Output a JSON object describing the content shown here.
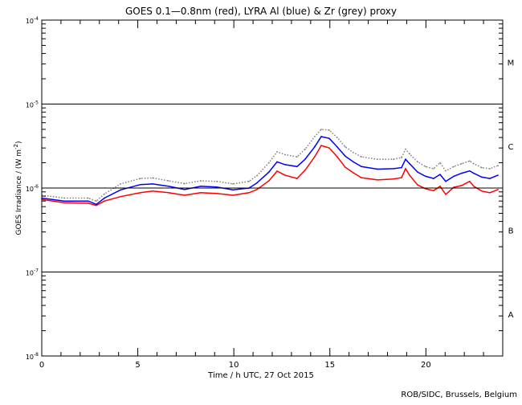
{
  "chart_data": {
    "type": "line",
    "title": "GOES 0.1—0.8nm (red), LYRA Al (blue) & Zr (grey) proxy",
    "xlabel": "Time / h UTC, 27 Oct 2015",
    "ylabel": "GOES Irradiance / (W m",
    "ylabel_sup": "-2",
    "ylabel_end": ")",
    "credit": "ROB/SIDC, Brussels, Belgium",
    "xlim": [
      0,
      24
    ],
    "ylim": [
      1e-08,
      0.0001
    ],
    "yscale": "log",
    "x_ticks": [
      0,
      5,
      10,
      15,
      20
    ],
    "x_tick_labels": [
      "0",
      "5",
      "10",
      "15",
      "20"
    ],
    "y_ticks": [
      1e-08,
      1e-07,
      1e-06,
      1e-05,
      0.0001
    ],
    "y_tick_labels": [
      {
        "base": "10",
        "exp": "-8"
      },
      {
        "base": "10",
        "exp": "-7"
      },
      {
        "base": "10",
        "exp": "-6"
      },
      {
        "base": "10",
        "exp": "-5"
      },
      {
        "base": "10",
        "exp": "-4"
      }
    ],
    "reference_lines": [
      1e-07,
      1e-06,
      1e-05
    ],
    "flare_classes": [
      {
        "label": "A",
        "center": 3.16e-08
      },
      {
        "label": "B",
        "center": 3.16e-07
      },
      {
        "label": "C",
        "center": 3.16e-06
      },
      {
        "label": "M",
        "center": 3.16e-05
      }
    ],
    "x": [
      0,
      1.17,
      2.42,
      2.84,
      3.26,
      4.1,
      5.14,
      5.77,
      6.6,
      7.44,
      8.28,
      9.11,
      9.95,
      10.79,
      11.2,
      11.83,
      12.25,
      12.67,
      13.29,
      13.71,
      14.21,
      14.55,
      14.97,
      15.38,
      15.8,
      16.22,
      16.64,
      17.48,
      18.31,
      18.73,
      18.94,
      19.15,
      19.57,
      19.98,
      20.4,
      20.74,
      21.03,
      21.45,
      21.86,
      22.28,
      22.49,
      22.91,
      23.33,
      23.75
    ],
    "series": [
      {
        "name": "GOES 0.1-0.8nm",
        "color": "#ff0000",
        "style": "solid",
        "values": [
          7.3e-07,
          6.7e-07,
          6.6e-07,
          6.2e-07,
          7e-07,
          7.9e-07,
          8.8e-07,
          9.2e-07,
          8.8e-07,
          8.2e-07,
          8.8e-07,
          8.6e-07,
          8.2e-07,
          8.8e-07,
          9.6e-07,
          1.22e-06,
          1.59e-06,
          1.42e-06,
          1.3e-06,
          1.63e-06,
          2.36e-06,
          3.21e-06,
          3e-06,
          2.36e-06,
          1.77e-06,
          1.52e-06,
          1.33e-06,
          1.25e-06,
          1.28e-06,
          1.33e-06,
          1.7e-06,
          1.42e-06,
          1.09e-06,
          9.8e-07,
          9.3e-07,
          1.05e-06,
          8.4e-07,
          1.02e-06,
          1.07e-06,
          1.2e-06,
          1.05e-06,
          9.2e-07,
          8.8e-07,
          9.6e-07
        ]
      },
      {
        "name": "LYRA Al proxy",
        "color": "#0000ff",
        "style": "solid",
        "values": [
          7.6e-07,
          7e-07,
          7e-07,
          6.4e-07,
          7.6e-07,
          9.5e-07,
          1.1e-06,
          1.12e-06,
          1.05e-06,
          9.6e-07,
          1.05e-06,
          1.03e-06,
          9.5e-07,
          1e-06,
          1.15e-06,
          1.55e-06,
          2.05e-06,
          1.9e-06,
          1.8e-06,
          2.2e-06,
          3.1e-06,
          4.1e-06,
          3.9e-06,
          3.1e-06,
          2.4e-06,
          2.05e-06,
          1.8e-06,
          1.68e-06,
          1.7e-06,
          1.75e-06,
          2.2e-06,
          1.95e-06,
          1.55e-06,
          1.38e-06,
          1.3e-06,
          1.45e-06,
          1.2e-06,
          1.38e-06,
          1.5e-06,
          1.6e-06,
          1.5e-06,
          1.35e-06,
          1.3e-06,
          1.42e-06
        ]
      },
      {
        "name": "LYRA Zr proxy",
        "color": "#808080",
        "style": "dotted",
        "values": [
          8.2e-07,
          7.6e-07,
          7.6e-07,
          7e-07,
          8.5e-07,
          1.12e-06,
          1.3e-06,
          1.32e-06,
          1.22e-06,
          1.13e-06,
          1.22e-06,
          1.2e-06,
          1.12e-06,
          1.2e-06,
          1.4e-06,
          2e-06,
          2.7e-06,
          2.5e-06,
          2.35e-06,
          2.9e-06,
          4.1e-06,
          5e-06,
          4.9e-06,
          4e-06,
          3.1e-06,
          2.65e-06,
          2.35e-06,
          2.2e-06,
          2.2e-06,
          2.3e-06,
          2.9e-06,
          2.55e-06,
          2.05e-06,
          1.8e-06,
          1.7e-06,
          2e-06,
          1.6e-06,
          1.8e-06,
          1.95e-06,
          2.1e-06,
          1.95e-06,
          1.75e-06,
          1.7e-06,
          1.85e-06
        ]
      }
    ]
  }
}
